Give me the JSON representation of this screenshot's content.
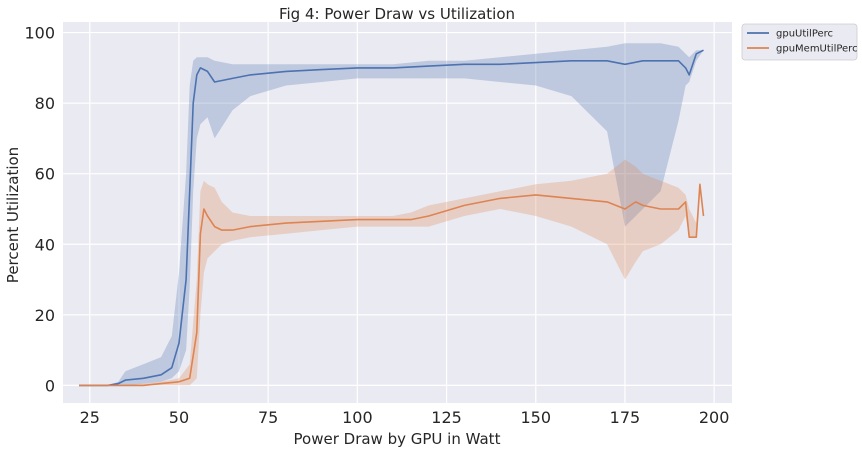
{
  "chart_data": {
    "type": "line",
    "title": "Fig 4: Power Draw vs Utilization",
    "xlabel": "Power Draw by GPU in Watt",
    "ylabel": "Percent Utilization",
    "xlim": [
      17.5,
      205
    ],
    "ylim": [
      -5,
      103
    ],
    "xticks": [
      25,
      50,
      75,
      100,
      125,
      150,
      175,
      200
    ],
    "yticks": [
      0,
      20,
      40,
      60,
      80,
      100
    ],
    "grid": true,
    "legend_position": "outside-top-right",
    "background_color": "#EAEAF2",
    "series": [
      {
        "name": "gpuUtilPerc",
        "color": "#4C72B0",
        "x": [
          22,
          30,
          33,
          35,
          40,
          45,
          48,
          50,
          52,
          53,
          54,
          55,
          56,
          58,
          60,
          65,
          70,
          80,
          90,
          100,
          110,
          120,
          130,
          140,
          150,
          160,
          170,
          175,
          180,
          185,
          190,
          192,
          193,
          195,
          197
        ],
        "y": [
          0,
          0,
          0.5,
          1.5,
          2,
          3,
          5,
          12,
          30,
          55,
          80,
          88,
          90,
          89,
          86,
          87,
          88,
          89,
          89.5,
          90,
          90,
          90.5,
          91,
          91,
          91.5,
          92,
          92,
          91,
          92,
          92,
          92,
          90,
          88,
          94,
          95
        ],
        "band_upper": [
          0,
          0,
          1,
          4,
          6,
          8,
          14,
          32,
          60,
          85,
          92,
          93,
          93,
          93,
          92,
          91,
          91,
          91,
          91,
          91,
          91,
          92,
          92,
          93,
          94,
          95,
          96,
          97,
          97,
          97,
          96,
          94,
          93,
          95,
          95
        ],
        "band_lower": [
          0,
          0,
          0,
          0,
          0.5,
          1,
          2,
          4,
          10,
          28,
          55,
          70,
          74,
          76,
          70,
          78,
          82,
          85,
          86,
          87,
          87,
          87,
          87,
          86,
          85,
          82,
          72,
          45,
          50,
          55,
          75,
          85,
          86,
          92,
          95
        ]
      },
      {
        "name": "gpuMemUtilPerc",
        "color": "#DD8452",
        "x": [
          22,
          30,
          40,
          45,
          50,
          53,
          55,
          56,
          57,
          58,
          60,
          62,
          65,
          70,
          80,
          90,
          100,
          110,
          115,
          120,
          130,
          140,
          150,
          160,
          170,
          175,
          178,
          180,
          185,
          190,
          192,
          193,
          195,
          196,
          197
        ],
        "y": [
          0,
          0,
          0,
          0.5,
          1,
          2,
          15,
          43,
          50,
          48,
          45,
          44,
          44,
          45,
          46,
          46.5,
          47,
          47,
          47,
          48,
          51,
          53,
          54,
          53,
          52,
          50,
          52,
          51,
          50,
          50,
          52,
          42,
          42,
          57,
          48
        ],
        "band_upper": [
          0,
          0,
          0.5,
          1,
          2,
          6,
          30,
          55,
          58,
          57,
          56,
          52,
          49,
          48,
          48,
          48,
          48,
          48,
          49,
          51,
          53,
          55,
          57,
          58,
          60,
          64,
          62,
          60,
          58,
          56,
          54,
          50,
          46,
          57,
          48
        ],
        "band_lower": [
          0,
          0,
          0,
          0,
          0,
          0,
          2,
          20,
          32,
          36,
          38,
          40,
          41,
          42,
          43,
          44,
          45,
          45,
          45,
          45,
          48,
          50,
          48,
          45,
          40,
          30,
          35,
          38,
          40,
          44,
          48,
          42,
          42,
          57,
          48
        ]
      }
    ]
  }
}
